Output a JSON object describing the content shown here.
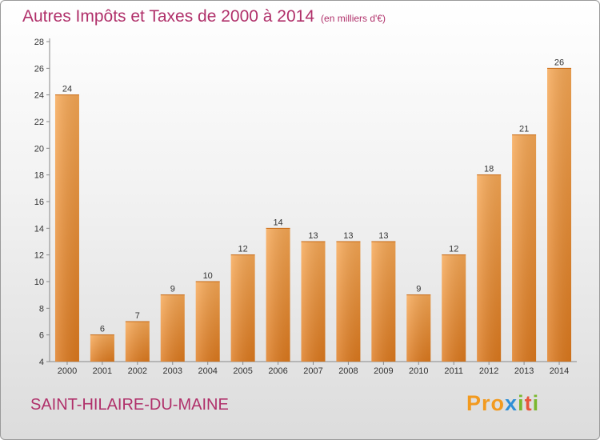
{
  "chart_data": {
    "type": "bar",
    "title": "Autres Impôts et Taxes de 2000 à 2014",
    "subtitle": "(en milliers d'€)",
    "categories": [
      "2000",
      "2001",
      "2002",
      "2003",
      "2004",
      "2005",
      "2006",
      "2007",
      "2008",
      "2009",
      "2010",
      "2011",
      "2012",
      "2013",
      "2014"
    ],
    "values": [
      24,
      6,
      7,
      9,
      10,
      12,
      14,
      13,
      13,
      13,
      9,
      12,
      18,
      21,
      26
    ],
    "ylim": [
      4,
      28
    ],
    "yticks": [
      4,
      6,
      8,
      10,
      12,
      14,
      16,
      18,
      20,
      22,
      24,
      26,
      28
    ],
    "grid": false,
    "bar_color": "#f0963c"
  },
  "footer": {
    "commune": "SAINT-HILAIRE-DU-MAINE",
    "logo_letters": [
      "P",
      "r",
      "o",
      "x",
      "i",
      "t",
      "i"
    ],
    "logo_colors": [
      "#f29a1f",
      "#f29a1f",
      "#f29a1f",
      "#2f8fd6",
      "#7ab82e",
      "#e8563b",
      "#7ab82e"
    ]
  }
}
